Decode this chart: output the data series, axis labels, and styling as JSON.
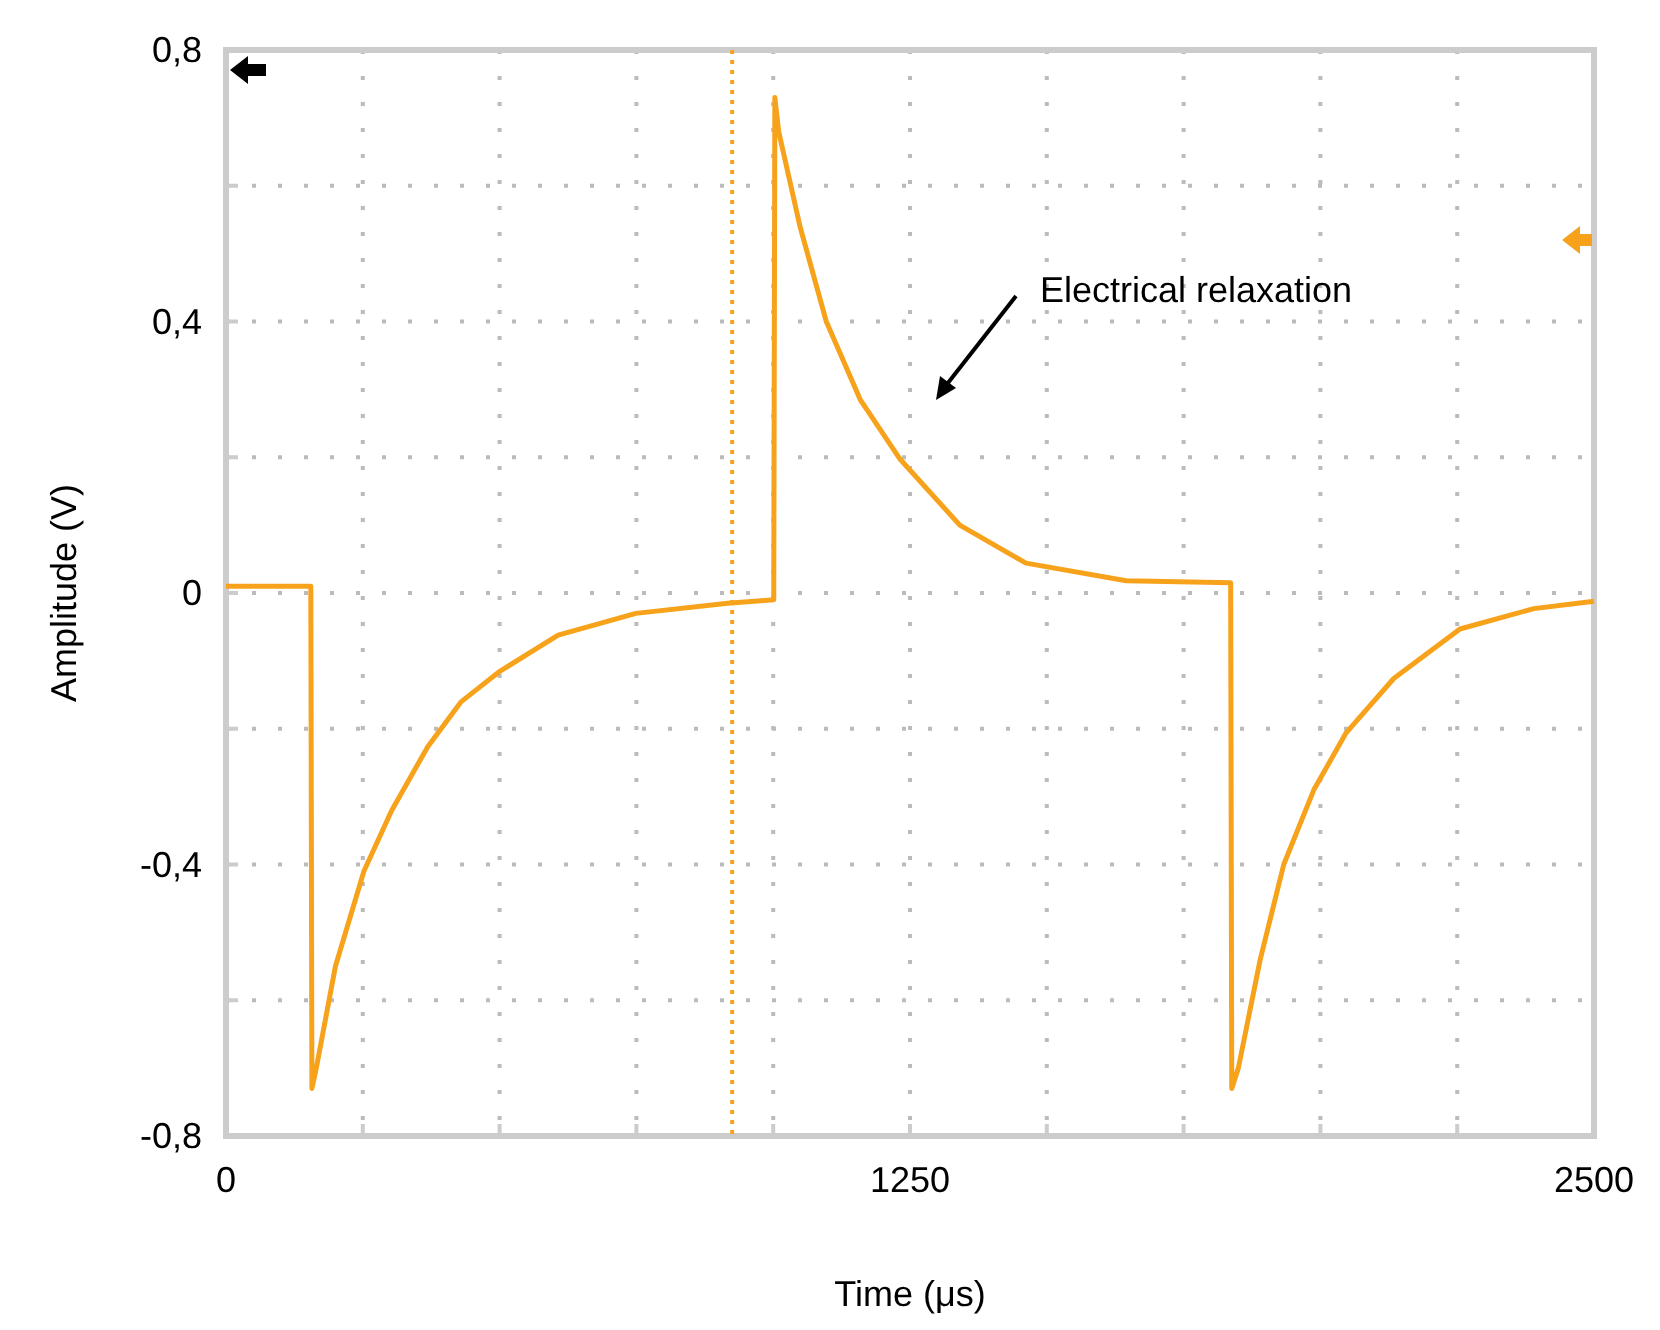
{
  "chart_data": {
    "type": "line",
    "xlabel": "Time (μs)",
    "ylabel": "Amplitude (V)",
    "xlim": [
      0,
      2500
    ],
    "ylim": [
      -0.8,
      0.8
    ],
    "xticks": [
      0,
      {
        "value": 250,
        "label": null
      },
      {
        "value": 500,
        "label": null
      },
      {
        "value": 750,
        "label": null
      },
      {
        "value": 1000,
        "label": null
      },
      1250,
      {
        "value": 1500,
        "label": null
      },
      {
        "value": 1750,
        "label": null
      },
      {
        "value": 2000,
        "label": null
      },
      {
        "value": 2250,
        "label": null
      },
      2500
    ],
    "yticks": [
      {
        "value": -0.8,
        "label": "-0,8"
      },
      {
        "value": -0.6,
        "label": null
      },
      {
        "value": -0.4,
        "label": "-0,4"
      },
      {
        "value": -0.2,
        "label": null
      },
      0,
      {
        "value": 0.2,
        "label": null
      },
      {
        "value": 0.4,
        "label": "0,4"
      },
      {
        "value": 0.6,
        "label": null
      },
      {
        "value": 0.8,
        "label": "0,8"
      }
    ],
    "grid": true,
    "line_style": "solid",
    "series": [
      {
        "color": "#f7a21b",
        "x": [
          0,
          80,
          155,
          157,
          165,
          200,
          252,
          303,
          369,
          430,
          501,
          607,
          749,
          917,
          1001,
          1003,
          1010,
          1049,
          1097,
          1159,
          1232,
          1341,
          1462,
          1645,
          1836,
          1838,
          1850,
          1890,
          1933,
          1988,
          2047,
          2134,
          2255,
          2390,
          2500
        ],
        "values": [
          0.01,
          0.01,
          0.01,
          -0.73,
          -0.7,
          -0.55,
          -0.41,
          -0.32,
          -0.226,
          -0.16,
          -0.115,
          -0.062,
          -0.03,
          -0.015,
          -0.01,
          0.73,
          0.68,
          0.54,
          0.4,
          0.285,
          0.197,
          0.1,
          0.044,
          0.018,
          0.015,
          -0.73,
          -0.7,
          -0.54,
          -0.4,
          -0.29,
          -0.206,
          -0.126,
          -0.053,
          -0.023,
          -0.012
        ]
      }
    ],
    "ref_lines": [
      {
        "axis": "x",
        "value": 925,
        "color": "#f7a21b",
        "line_style": "dotted"
      }
    ],
    "annotations": [
      "Electrical relaxation"
    ]
  }
}
